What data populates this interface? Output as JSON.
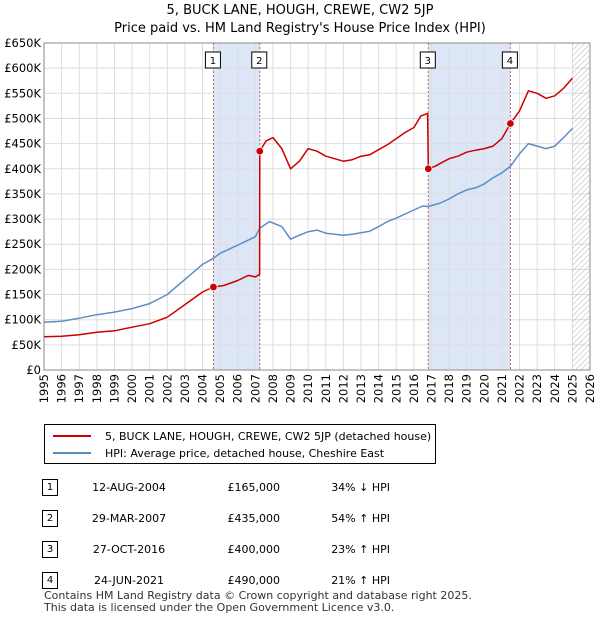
{
  "title": "5, BUCK LANE, HOUGH, CREWE, CW2 5JP",
  "subtitle": "Price paid vs. HM Land Registry's House Price Index (HPI)",
  "chart_data": {
    "type": "line",
    "xlim": [
      1995,
      2026
    ],
    "ylim": [
      0,
      650000
    ],
    "x_ticks": [
      "1995",
      "1996",
      "1997",
      "1998",
      "1999",
      "2000",
      "2001",
      "2002",
      "2003",
      "2004",
      "2005",
      "2006",
      "2007",
      "2008",
      "2009",
      "2010",
      "2011",
      "2012",
      "2013",
      "2014",
      "2015",
      "2016",
      "2017",
      "2018",
      "2019",
      "2020",
      "2021",
      "2022",
      "2023",
      "2024",
      "2025",
      "2026"
    ],
    "y_ticks": [
      {
        "value": 0,
        "label": "£0"
      },
      {
        "value": 50000,
        "label": "£50K"
      },
      {
        "value": 100000,
        "label": "£100K"
      },
      {
        "value": 150000,
        "label": "£150K"
      },
      {
        "value": 200000,
        "label": "£200K"
      },
      {
        "value": 250000,
        "label": "£250K"
      },
      {
        "value": 300000,
        "label": "£300K"
      },
      {
        "value": 350000,
        "label": "£350K"
      },
      {
        "value": 400000,
        "label": "£400K"
      },
      {
        "value": 450000,
        "label": "£450K"
      },
      {
        "value": 500000,
        "label": "£500K"
      },
      {
        "value": 550000,
        "label": "£550K"
      },
      {
        "value": 600000,
        "label": "£600K"
      },
      {
        "value": 650000,
        "label": "£650K"
      }
    ],
    "grid": true,
    "shaded_ranges": [
      [
        2004.6,
        2007.25
      ],
      [
        2016.8,
        2021.5
      ]
    ],
    "hatched_from": 2025.0,
    "series": [
      {
        "name": "5, BUCK LANE, HOUGH, CREWE, CW2 5JP (detached house)",
        "color": "#cc0000",
        "points": [
          [
            1995.0,
            66000
          ],
          [
            1996.0,
            67000
          ],
          [
            1997.0,
            70000
          ],
          [
            1998.0,
            75000
          ],
          [
            1999.0,
            78000
          ],
          [
            2000.0,
            85000
          ],
          [
            2001.0,
            92000
          ],
          [
            2002.0,
            105000
          ],
          [
            2003.0,
            130000
          ],
          [
            2004.0,
            155000
          ],
          [
            2004.62,
            165000
          ],
          [
            2005.2,
            168000
          ],
          [
            2006.0,
            178000
          ],
          [
            2006.6,
            188000
          ],
          [
            2007.0,
            185000
          ],
          [
            2007.24,
            190000
          ],
          [
            2007.25,
            435000
          ],
          [
            2007.6,
            455000
          ],
          [
            2008.0,
            462000
          ],
          [
            2008.5,
            440000
          ],
          [
            2009.0,
            400000
          ],
          [
            2009.5,
            415000
          ],
          [
            2010.0,
            440000
          ],
          [
            2010.5,
            435000
          ],
          [
            2011.0,
            425000
          ],
          [
            2011.5,
            420000
          ],
          [
            2012.0,
            415000
          ],
          [
            2012.5,
            418000
          ],
          [
            2013.0,
            425000
          ],
          [
            2013.5,
            428000
          ],
          [
            2014.0,
            438000
          ],
          [
            2014.5,
            448000
          ],
          [
            2015.0,
            460000
          ],
          [
            2015.5,
            472000
          ],
          [
            2016.0,
            482000
          ],
          [
            2016.4,
            505000
          ],
          [
            2016.78,
            510000
          ],
          [
            2016.82,
            400000
          ],
          [
            2017.2,
            405000
          ],
          [
            2018.0,
            420000
          ],
          [
            2018.5,
            425000
          ],
          [
            2019.0,
            433000
          ],
          [
            2019.5,
            437000
          ],
          [
            2020.0,
            440000
          ],
          [
            2020.5,
            445000
          ],
          [
            2021.0,
            460000
          ],
          [
            2021.48,
            490000
          ],
          [
            2022.0,
            515000
          ],
          [
            2022.5,
            555000
          ],
          [
            2023.0,
            550000
          ],
          [
            2023.5,
            540000
          ],
          [
            2024.0,
            545000
          ],
          [
            2024.5,
            560000
          ],
          [
            2025.0,
            580000
          ]
        ]
      },
      {
        "name": "HPI: Average price, detached house, Cheshire East",
        "color": "#5b8ec4",
        "points": [
          [
            1995.0,
            95000
          ],
          [
            1996.0,
            97000
          ],
          [
            1997.0,
            103000
          ],
          [
            1998.0,
            110000
          ],
          [
            1999.0,
            115000
          ],
          [
            2000.0,
            122000
          ],
          [
            2001.0,
            132000
          ],
          [
            2002.0,
            150000
          ],
          [
            2003.0,
            180000
          ],
          [
            2004.0,
            210000
          ],
          [
            2004.62,
            222000
          ],
          [
            2005.0,
            232000
          ],
          [
            2006.0,
            248000
          ],
          [
            2007.0,
            265000
          ],
          [
            2007.25,
            282000
          ],
          [
            2007.8,
            295000
          ],
          [
            2008.5,
            285000
          ],
          [
            2009.0,
            260000
          ],
          [
            2009.5,
            268000
          ],
          [
            2010.0,
            275000
          ],
          [
            2010.5,
            278000
          ],
          [
            2011.0,
            272000
          ],
          [
            2011.5,
            270000
          ],
          [
            2012.0,
            268000
          ],
          [
            2012.5,
            270000
          ],
          [
            2013.0,
            273000
          ],
          [
            2013.5,
            276000
          ],
          [
            2014.0,
            285000
          ],
          [
            2014.5,
            295000
          ],
          [
            2015.0,
            302000
          ],
          [
            2015.5,
            310000
          ],
          [
            2016.0,
            318000
          ],
          [
            2016.5,
            326000
          ],
          [
            2016.82,
            325000
          ],
          [
            2017.5,
            332000
          ],
          [
            2018.0,
            340000
          ],
          [
            2018.5,
            350000
          ],
          [
            2019.0,
            358000
          ],
          [
            2019.5,
            362000
          ],
          [
            2020.0,
            370000
          ],
          [
            2020.5,
            382000
          ],
          [
            2021.0,
            392000
          ],
          [
            2021.48,
            405000
          ],
          [
            2022.0,
            430000
          ],
          [
            2022.5,
            450000
          ],
          [
            2023.0,
            445000
          ],
          [
            2023.5,
            440000
          ],
          [
            2024.0,
            445000
          ],
          [
            2024.5,
            462000
          ],
          [
            2025.0,
            480000
          ]
        ]
      }
    ],
    "sales": [
      {
        "n": "1",
        "x": 2004.62,
        "price": 165000
      },
      {
        "n": "2",
        "x": 2007.25,
        "price": 435000
      },
      {
        "n": "3",
        "x": 2016.82,
        "price": 400000
      },
      {
        "n": "4",
        "x": 2021.48,
        "price": 490000
      }
    ]
  },
  "legend": {
    "property_label": "5, BUCK LANE, HOUGH, CREWE, CW2 5JP (detached house)",
    "hpi_label": "HPI: Average price, detached house, Cheshire East"
  },
  "events": [
    {
      "n": "1",
      "date": "12-AUG-2004",
      "price": "£165,000",
      "hpi": "34% ↓ HPI"
    },
    {
      "n": "2",
      "date": "29-MAR-2007",
      "price": "£435,000",
      "hpi": "54% ↑ HPI"
    },
    {
      "n": "3",
      "date": "27-OCT-2016",
      "price": "£400,000",
      "hpi": "23% ↑ HPI"
    },
    {
      "n": "4",
      "date": "24-JUN-2021",
      "price": "£490,000",
      "hpi": "21% ↑ HPI"
    }
  ],
  "footer": {
    "line1": "Contains HM Land Registry data © Crown copyright and database right 2025.",
    "line2": "This data is licensed under the Open Government Licence v3.0."
  },
  "colors": {
    "property": "#cc0000",
    "hpi": "#5b8ec4",
    "shade": "#dde6f7",
    "grid": "#dddddd"
  }
}
